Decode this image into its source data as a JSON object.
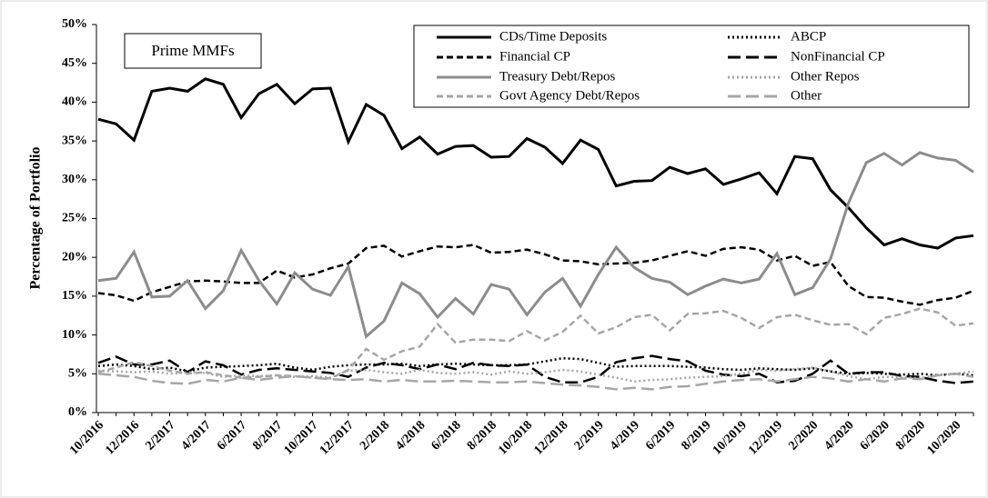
{
  "chart_data": {
    "type": "line",
    "ylabel": "Percentage of Portfolio",
    "annotation": "Prime MMFs",
    "categories": [
      "10/2016",
      null,
      "12/2016",
      null,
      "2/2017",
      null,
      "4/2017",
      null,
      "6/2017",
      null,
      "8/2017",
      null,
      "10/2017",
      null,
      "12/2017",
      null,
      "2/2018",
      null,
      "4/2018",
      null,
      "6/2018",
      null,
      "8/2018",
      null,
      "10/2018",
      null,
      "12/2018",
      null,
      "2/2019",
      null,
      "4/2019",
      null,
      "6/2019",
      null,
      "8/2019",
      null,
      "10/2019",
      null,
      "12/2019",
      null,
      "2/2020",
      null,
      "4/2020",
      null,
      "6/2020",
      null,
      "8/2020",
      null,
      "10/2020",
      null
    ],
    "ylim": [
      0,
      50
    ],
    "yticks": [
      {
        "value": 0,
        "label": "0%"
      },
      {
        "value": 5,
        "label": "5%"
      },
      {
        "value": 10,
        "label": "10%"
      },
      {
        "value": 15,
        "label": "15%"
      },
      {
        "value": 20,
        "label": "20%"
      },
      {
        "value": 25,
        "label": "25%"
      },
      {
        "value": 30,
        "label": "30%"
      },
      {
        "value": 35,
        "label": "35%"
      },
      {
        "value": 40,
        "label": "40%"
      },
      {
        "value": 45,
        "label": "45%"
      },
      {
        "value": 50,
        "label": "50%"
      }
    ],
    "series": [
      {
        "name": "CDs/Time Deposits",
        "color": "#000000",
        "dash": "solid",
        "values": [
          37.8,
          37.2,
          35.1,
          41.4,
          41.8,
          41.4,
          43.0,
          42.3,
          38.0,
          41.1,
          42.3,
          39.8,
          41.7,
          41.8,
          34.9,
          39.7,
          38.3,
          34.0,
          35.5,
          33.3,
          34.3,
          34.4,
          32.9,
          33.0,
          35.3,
          34.2,
          32.1,
          35.1,
          33.9,
          29.2,
          29.8,
          29.9,
          31.6,
          30.8,
          31.4,
          29.4,
          30.1,
          30.9,
          28.2,
          33.0,
          32.7,
          28.7,
          26.4,
          23.8,
          21.6,
          22.4,
          21.6,
          21.2,
          22.5,
          22.8
        ]
      },
      {
        "name": "ABCP",
        "color": "#000000",
        "dash": "dotted",
        "values": [
          6.0,
          6.2,
          6.0,
          5.6,
          5.8,
          5.3,
          5.8,
          5.9,
          6.0,
          6.1,
          6.3,
          5.8,
          5.5,
          5.9,
          6.1,
          6.2,
          6.2,
          6.3,
          6.0,
          6.2,
          6.3,
          6.2,
          6.1,
          6.1,
          6.2,
          6.6,
          7.0,
          6.9,
          6.4,
          5.9,
          6.0,
          6.0,
          6.0,
          5.9,
          5.8,
          5.6,
          5.5,
          5.7,
          5.6,
          5.5,
          5.7,
          5.3,
          5.0,
          5.1,
          5.0,
          4.9,
          5.0,
          4.8,
          5.0,
          4.8
        ]
      },
      {
        "name": "Financial CP",
        "color": "#000000",
        "dash": "dashed",
        "values": [
          15.4,
          15.1,
          14.4,
          15.5,
          16.2,
          16.9,
          17.0,
          16.9,
          16.7,
          16.7,
          18.3,
          17.4,
          17.8,
          18.6,
          19.2,
          21.2,
          21.5,
          20.1,
          20.8,
          21.4,
          21.3,
          21.6,
          20.6,
          20.7,
          21.0,
          20.4,
          19.6,
          19.5,
          19.1,
          19.2,
          19.3,
          19.6,
          20.2,
          20.8,
          20.2,
          21.1,
          21.3,
          21.0,
          19.6,
          20.2,
          18.9,
          19.4,
          16.3,
          14.9,
          14.8,
          14.3,
          13.9,
          14.5,
          14.8,
          15.7
        ]
      },
      {
        "name": "NonFinancial CP",
        "color": "#000000",
        "dash": "longdash",
        "values": [
          6.4,
          7.2,
          6.2,
          6.2,
          6.7,
          5.2,
          6.6,
          6.1,
          4.9,
          5.5,
          5.7,
          5.5,
          5.3,
          5.1,
          4.6,
          5.8,
          6.4,
          6.1,
          5.6,
          6.2,
          5.6,
          6.4,
          6.1,
          6.0,
          6.2,
          4.6,
          3.9,
          3.9,
          4.6,
          6.5,
          7.0,
          7.3,
          6.9,
          6.6,
          5.4,
          4.9,
          4.7,
          5.0,
          3.9,
          4.1,
          5.0,
          6.7,
          5.0,
          5.2,
          5.2,
          4.7,
          4.6,
          4.1,
          3.8,
          4.0
        ]
      },
      {
        "name": "Treasury Debt/Repos",
        "color": "#8c8c8c",
        "dash": "solid",
        "values": [
          17.0,
          17.3,
          20.7,
          14.9,
          15.0,
          17.0,
          13.4,
          15.7,
          20.9,
          17.0,
          14.0,
          18.0,
          15.9,
          15.1,
          18.8,
          9.8,
          11.8,
          16.7,
          15.3,
          12.3,
          14.7,
          12.7,
          16.5,
          15.9,
          12.6,
          15.5,
          17.3,
          13.7,
          17.8,
          21.3,
          18.7,
          17.3,
          16.8,
          15.2,
          16.3,
          17.2,
          16.7,
          17.2,
          20.5,
          15.2,
          16.1,
          19.8,
          27.0,
          32.2,
          33.4,
          31.9,
          33.5,
          32.8,
          32.5,
          31.0
        ]
      },
      {
        "name": "Other Repos",
        "color": "#a6a6a6",
        "dash": "dotted",
        "values": [
          5.4,
          5.3,
          5.2,
          5.3,
          5.0,
          5.2,
          5.1,
          4.6,
          4.8,
          4.7,
          4.8,
          4.6,
          4.7,
          4.5,
          5.4,
          5.5,
          5.2,
          5.0,
          5.5,
          5.1,
          5.0,
          5.2,
          4.9,
          5.3,
          5.0,
          5.2,
          5.5,
          5.3,
          4.9,
          4.5,
          4.0,
          4.2,
          4.3,
          4.5,
          4.6,
          4.7,
          5.0,
          5.5,
          5.4,
          5.6,
          5.8,
          5.3,
          4.7,
          4.3,
          4.6,
          4.6,
          4.4,
          4.9,
          5.0,
          5.3
        ]
      },
      {
        "name": "Govt Agency Debt/Repos",
        "color": "#a6a6a6",
        "dash": "dashed",
        "values": [
          5.2,
          5.8,
          6.5,
          6.0,
          5.4,
          5.0,
          5.2,
          4.8,
          4.5,
          4.6,
          4.8,
          4.7,
          4.5,
          4.4,
          5.5,
          8.2,
          6.8,
          7.9,
          8.5,
          11.4,
          9.0,
          9.4,
          9.4,
          9.2,
          10.5,
          9.3,
          10.4,
          12.5,
          10.2,
          11.0,
          12.3,
          12.6,
          10.6,
          12.7,
          12.8,
          13.1,
          12.2,
          10.9,
          12.3,
          12.6,
          11.9,
          11.3,
          11.4,
          10.1,
          12.2,
          12.7,
          13.4,
          12.9,
          11.2,
          11.5
        ]
      },
      {
        "name": "Other",
        "color": "#a6a6a6",
        "dash": "longdash",
        "values": [
          5.0,
          4.8,
          4.6,
          4.1,
          3.8,
          3.7,
          4.2,
          4.0,
          4.5,
          4.2,
          4.5,
          4.7,
          4.5,
          4.3,
          4.2,
          4.3,
          4.0,
          4.2,
          4.0,
          4.0,
          4.1,
          4.0,
          3.9,
          3.9,
          4.0,
          3.8,
          3.6,
          3.5,
          3.3,
          3.0,
          3.2,
          3.0,
          3.3,
          3.4,
          3.7,
          4.0,
          4.2,
          4.3,
          4.0,
          4.3,
          4.6,
          4.4,
          4.0,
          4.3,
          4.0,
          4.4,
          4.3,
          4.8,
          5.0,
          4.6
        ]
      }
    ]
  }
}
